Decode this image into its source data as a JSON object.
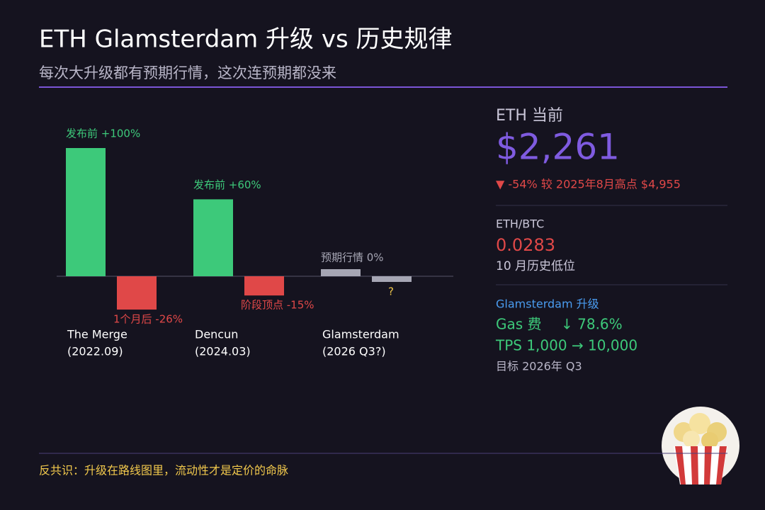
{
  "title": "ETH Glamsterdam 升级 vs 历史规律",
  "subtitle": "每次大升级都有预期行情，这次连预期都没来",
  "chart_data": {
    "type": "bar",
    "categories": [
      "The Merge",
      "Dencun",
      "Glamsterdam"
    ],
    "category_dates": [
      "(2022.09)",
      "(2024.03)",
      "(2026 Q3?)"
    ],
    "series": [
      {
        "colors": [
          "#3dc97a",
          "#3dc97a",
          "#a6a6b4"
        ],
        "values": [
          100,
          60,
          0
        ],
        "value_labels": [
          "发布前 +100%",
          "发布前 +60%",
          "预期行情 0%"
        ]
      },
      {
        "colors": [
          "#e04848",
          "#e04848",
          "#f2c94c"
        ],
        "values": [
          -26,
          -15,
          null
        ],
        "value_labels": [
          "1个月后 -26%",
          "阶段顶点 -15%",
          "?"
        ]
      }
    ],
    "ylim": [
      -40,
      100
    ]
  },
  "panel": {
    "eth_label": "ETH 当前",
    "eth_price": "$2,261",
    "eth_change": "▼ -54% 较 2025年8月高点 $4,955",
    "ethbtc_label": "ETH/BTC",
    "ethbtc_value": "0.0283",
    "ethbtc_note": "10 月历史低位",
    "upgrade_title": "Glamsterdam 升级",
    "gas_label": "Gas 费",
    "gas_value": "↓ 78.6%",
    "tps": "TPS  1,000 → 10,000",
    "target": "目标 2026年 Q3"
  },
  "footer": "反共识：升级在路线图里，流动性才是定价的命脉"
}
